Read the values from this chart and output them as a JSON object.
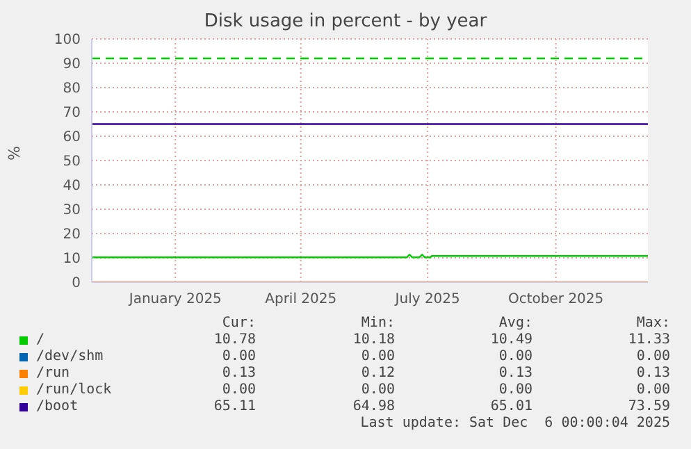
{
  "chart_data": {
    "type": "line",
    "title": "Disk usage in percent - by year",
    "ylabel": "%",
    "xlim": [
      "2024-11-02",
      "2025-12-06"
    ],
    "xticks": [
      {
        "value": "2025-01-01",
        "label": "January 2025"
      },
      {
        "value": "2025-04-01",
        "label": "April 2025"
      },
      {
        "value": "2025-07-01",
        "label": "July 2025"
      },
      {
        "value": "2025-10-01",
        "label": "October 2025"
      }
    ],
    "ylim": [
      0,
      100
    ],
    "yticks": [
      0,
      10,
      20,
      30,
      40,
      50,
      60,
      70,
      80,
      90,
      100
    ],
    "grid": true,
    "legend": "bottom",
    "marker": "none",
    "series": [
      {
        "name": "/",
        "color": "#00cc00",
        "x": [
          "2024-11-02",
          "2025-06-16",
          "2025-06-18",
          "2025-06-20",
          "2025-06-25",
          "2025-06-27",
          "2025-06-29",
          "2025-07-03",
          "2025-07-04",
          "2025-12-06"
        ],
        "values": [
          10.2,
          10.2,
          11.3,
          10.2,
          10.2,
          11.3,
          10.2,
          10.2,
          10.8,
          10.8
        ]
      },
      {
        "name": "/dev/shm",
        "color": "#0066b3"
      },
      {
        "name": "/run",
        "color": "#ff8000",
        "x": [
          "2024-11-02",
          "2025-12-06"
        ],
        "values": [
          0.1,
          0.1
        ]
      },
      {
        "name": "/run/lock",
        "color": "#ffcc00"
      },
      {
        "name": "/boot",
        "color": "#330099",
        "x": [
          "2024-11-02",
          "2025-12-06"
        ],
        "values": [
          65,
          65
        ]
      }
    ],
    "ref_lines": [
      {
        "axis": "y",
        "value": 92,
        "label": null,
        "color": "#00cc00",
        "line_style": "dashed"
      }
    ],
    "annotations": [
      "Cur:",
      "Min:",
      "Avg:",
      "Max:",
      "10.78",
      "10.18",
      "10.49",
      "11.33",
      "0.00",
      "0.00",
      "0.00",
      "0.00",
      "0.13",
      "0.12",
      "0.13",
      "0.13",
      "0.00",
      "0.00",
      "0.00",
      "0.00",
      "65.11",
      "64.98",
      "65.01",
      "73.59",
      "Last update: Sat Dec  6 00:00:04 2025"
    ]
  }
}
